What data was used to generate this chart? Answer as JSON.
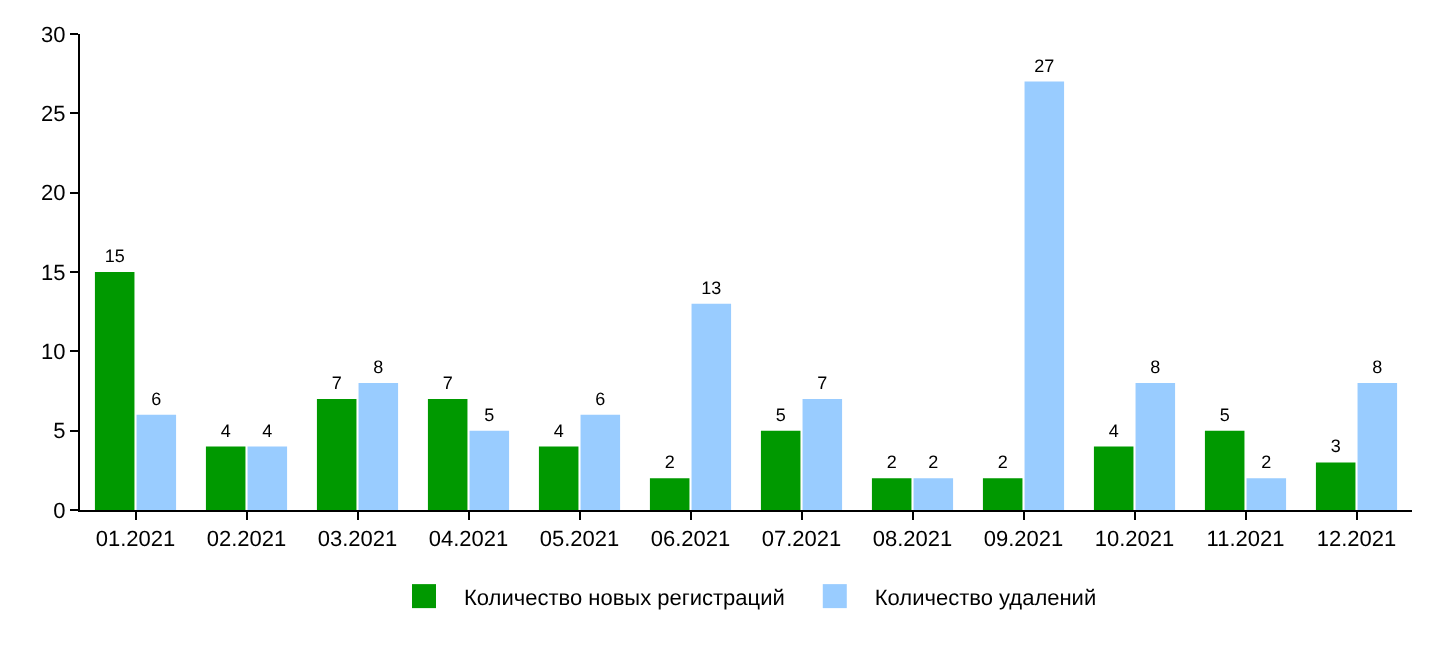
{
  "chart_data": {
    "type": "bar",
    "categories": [
      "01.2021",
      "02.2021",
      "03.2021",
      "04.2021",
      "05.2021",
      "06.2021",
      "07.2021",
      "08.2021",
      "09.2021",
      "10.2021",
      "11.2021",
      "12.2021"
    ],
    "series": [
      {
        "name": "Количество новых регистраций",
        "color": "#009900",
        "values": [
          15,
          4,
          7,
          7,
          4,
          2,
          5,
          2,
          2,
          4,
          5,
          3
        ]
      },
      {
        "name": "Количество удалений",
        "color": "#99ccff",
        "values": [
          6,
          4,
          8,
          5,
          6,
          13,
          7,
          2,
          27,
          8,
          2,
          8
        ]
      }
    ],
    "ylim": [
      0,
      30
    ],
    "yticks": [
      0,
      5,
      10,
      15,
      20,
      25,
      30
    ],
    "data_labels": true,
    "grid": false,
    "legend": "bottom"
  }
}
